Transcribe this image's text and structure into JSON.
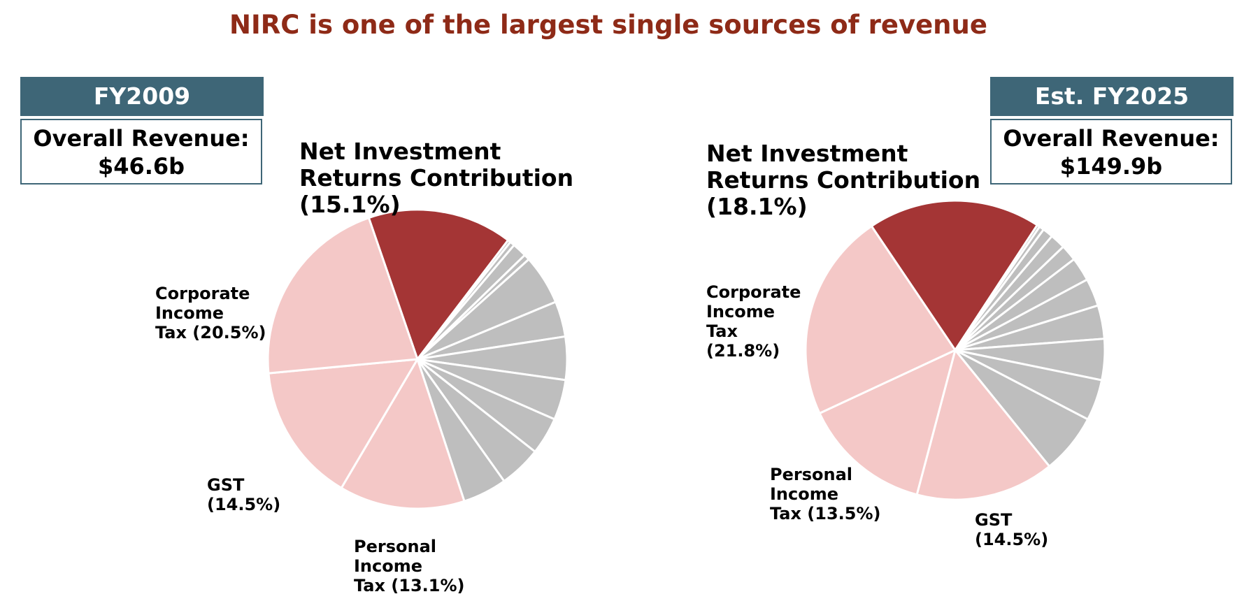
{
  "title": "NIRC is one of the largest single sources of revenue",
  "chart_data": [
    {
      "type": "pie",
      "header": "FY2009",
      "revenue_label": "Overall Revenue:",
      "revenue_value": "$46.6b",
      "slices": [
        {
          "name": "Net Investment Returns Contribution",
          "value": 15.1,
          "color": "#a43535",
          "label_lines": [
            "Net Investment",
            "Returns Contribution",
            "(15.1%)"
          ]
        },
        {
          "name": "",
          "value": 0.3,
          "color": "#bebebe"
        },
        {
          "name": "",
          "value": 0.5,
          "color": "#bebebe"
        },
        {
          "name": "",
          "value": 1.5,
          "color": "#bebebe"
        },
        {
          "name": "",
          "value": 0.6,
          "color": "#bebebe"
        },
        {
          "name": "",
          "value": 5.2,
          "color": "#bebebe"
        },
        {
          "name": "",
          "value": 3.7,
          "color": "#bebebe"
        },
        {
          "name": "",
          "value": 4.5,
          "color": "#bebebe"
        },
        {
          "name": "",
          "value": 4.2,
          "color": "#bebebe"
        },
        {
          "name": "",
          "value": 3.9,
          "color": "#bebebe"
        },
        {
          "name": "",
          "value": 4.4,
          "color": "#bebebe"
        },
        {
          "name": "",
          "value": 4.6,
          "color": "#bebebe"
        },
        {
          "name": "Personal Income Tax",
          "value": 13.1,
          "color": "#f4c8c7",
          "label_lines": [
            "Personal",
            "Income",
            "Tax (13.1%)"
          ]
        },
        {
          "name": "GST",
          "value": 14.5,
          "color": "#f4c8c7",
          "label_lines": [
            "GST",
            "(14.5%)"
          ]
        },
        {
          "name": "Corporate Income Tax",
          "value": 20.5,
          "color": "#f4c8c7",
          "label_lines": [
            "Corporate",
            "Income",
            "Tax (20.5%)"
          ]
        }
      ]
    },
    {
      "type": "pie",
      "header": "Est. FY2025",
      "revenue_label": "Overall Revenue:",
      "revenue_value": "$149.9b",
      "slices": [
        {
          "name": "Net Investment Returns Contribution",
          "value": 18.1,
          "color": "#a43535",
          "label_lines": [
            "Net Investment",
            "Returns Contribution",
            "(18.1%)"
          ]
        },
        {
          "name": "",
          "value": 0.3,
          "color": "#bebebe"
        },
        {
          "name": "",
          "value": 0.5,
          "color": "#bebebe"
        },
        {
          "name": "",
          "value": 1.1,
          "color": "#bebebe"
        },
        {
          "name": "",
          "value": 1.6,
          "color": "#bebebe"
        },
        {
          "name": "",
          "value": 1.7,
          "color": "#bebebe"
        },
        {
          "name": "",
          "value": 2.5,
          "color": "#bebebe"
        },
        {
          "name": "",
          "value": 2.9,
          "color": "#bebebe"
        },
        {
          "name": "",
          "value": 3.5,
          "color": "#bebebe"
        },
        {
          "name": "",
          "value": 4.3,
          "color": "#bebebe"
        },
        {
          "name": "",
          "value": 4.3,
          "color": "#bebebe"
        },
        {
          "name": "",
          "value": 6.3,
          "color": "#bebebe"
        },
        {
          "name": "GST",
          "value": 14.5,
          "color": "#f4c8c7",
          "label_lines": [
            "GST",
            "(14.5%)"
          ]
        },
        {
          "name": "Personal Income Tax",
          "value": 13.5,
          "color": "#f4c8c7",
          "label_lines": [
            "Personal",
            "Income",
            "Tax (13.5%)"
          ]
        },
        {
          "name": "Corporate Income Tax",
          "value": 21.8,
          "color": "#f4c8c7",
          "label_lines": [
            "Corporate",
            "Income",
            "Tax",
            "(21.8%)"
          ]
        }
      ]
    }
  ]
}
